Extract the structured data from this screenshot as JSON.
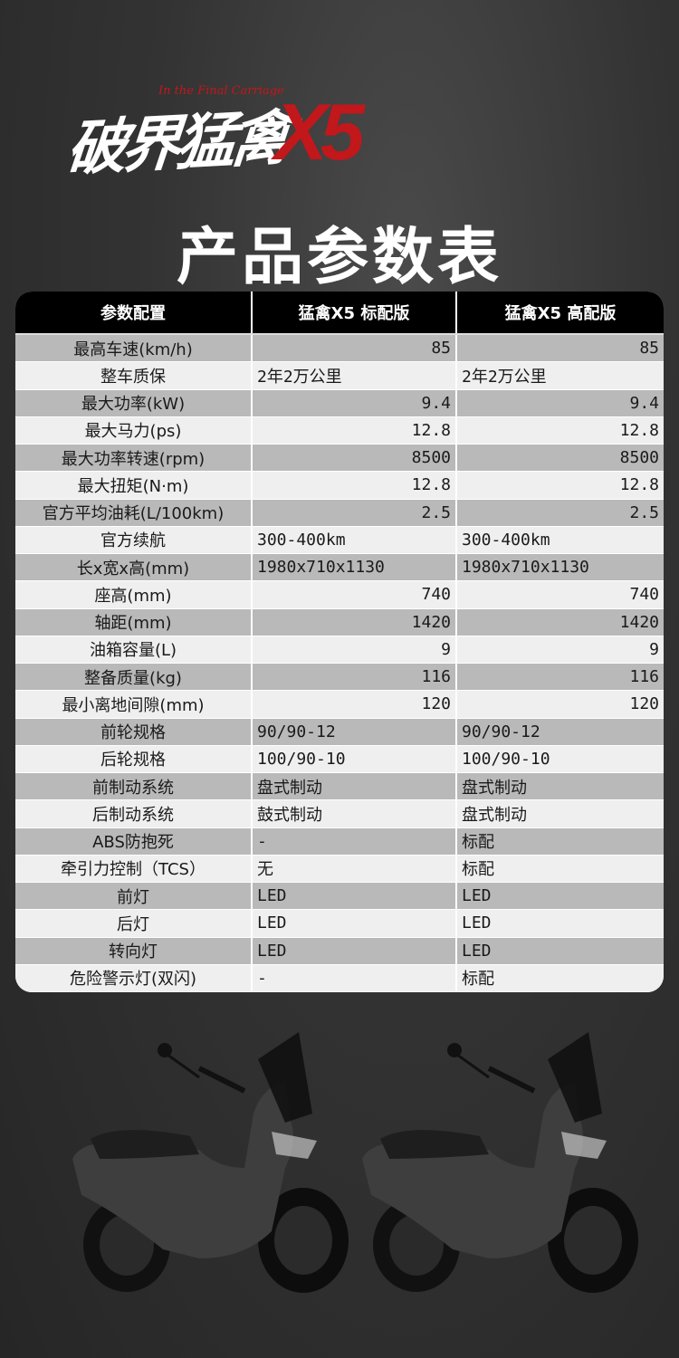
{
  "logo": {
    "text": "破界猛禽",
    "model": "X5",
    "script": "In the Final Carriage"
  },
  "title": "产品参数表",
  "table": {
    "headers": [
      "参数配置",
      "猛禽X5  标配版",
      "猛禽X5  高配版"
    ],
    "rows": [
      [
        "最高车速(km/h)",
        "85",
        "85"
      ],
      [
        "整车质保",
        "2年2万公里",
        "2年2万公里"
      ],
      [
        "最大功率(kW)",
        "9.4",
        "9.4"
      ],
      [
        "最大马力(ps)",
        "12.8",
        "12.8"
      ],
      [
        "最大功率转速(rpm)",
        "8500",
        "8500"
      ],
      [
        "最大扭矩(N·m)",
        "12.8",
        "12.8"
      ],
      [
        "官方平均油耗(L/100km)",
        "2.5",
        "2.5"
      ],
      [
        "官方续航",
        "300-400km",
        "300-400km"
      ],
      [
        "长x宽x高(mm)",
        "1980x710x1130",
        "1980x710x1130"
      ],
      [
        "座高(mm)",
        "740",
        "740"
      ],
      [
        "轴距(mm)",
        "1420",
        "1420"
      ],
      [
        "油箱容量(L)",
        "9",
        "9"
      ],
      [
        "整备质量(kg)",
        "116",
        "116"
      ],
      [
        "最小离地间隙(mm)",
        "120",
        "120"
      ],
      [
        "前轮规格",
        "90/90-12",
        "90/90-12"
      ],
      [
        "后轮规格",
        "100/90-10",
        "100/90-10"
      ],
      [
        "前制动系统",
        "盘式制动",
        "盘式制动"
      ],
      [
        "后制动系统",
        "鼓式制动",
        "盘式制动"
      ],
      [
        "ABS防抱死",
        "-",
        "标配"
      ],
      [
        "牵引力控制（TCS）",
        "无",
        "标配"
      ],
      [
        "前灯",
        "LED",
        "LED"
      ],
      [
        "后灯",
        "LED",
        "LED"
      ],
      [
        "转向灯",
        "LED",
        "LED"
      ],
      [
        "危险警示灯(双闪)",
        "-",
        "标配"
      ]
    ]
  },
  "colors": {
    "accent": "#c2171b",
    "header_bg": "#000000",
    "row_gray": "#b9b9b9",
    "row_light": "#efefef"
  },
  "images": [
    "scooter-standard",
    "scooter-premium"
  ]
}
